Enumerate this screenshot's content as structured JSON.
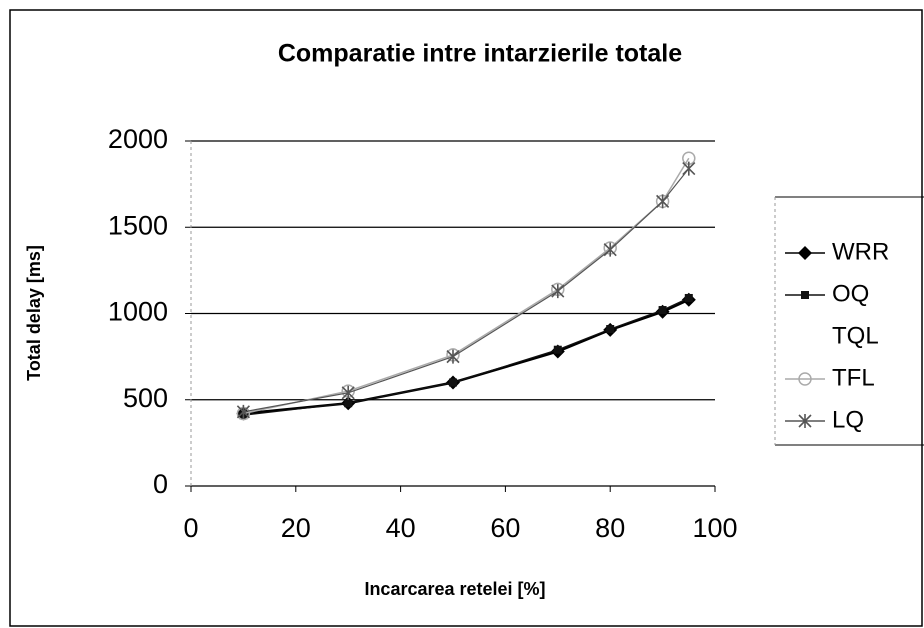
{
  "chart_data": {
    "type": "line",
    "title": "Comparatie intre intarzierile totale",
    "xlabel": "Incarcarea retelei [%]",
    "ylabel": "Total delay [ms]",
    "x": [
      10,
      30,
      50,
      70,
      80,
      90,
      95
    ],
    "series": [
      {
        "name": "WRR",
        "color": "#000000",
        "marker": "diamond",
        "values": [
          420,
          480,
          600,
          780,
          905,
          1010,
          1080
        ]
      },
      {
        "name": "OQ",
        "color": "#111111",
        "marker": "square",
        "values": [
          410,
          480,
          600,
          790,
          910,
          1020,
          1090
        ]
      },
      {
        "name": "TQL",
        "color": "#ffffff",
        "marker": "none",
        "values": [
          null,
          null,
          null,
          null,
          null,
          null,
          null
        ]
      },
      {
        "name": "TFL",
        "color": "#aaaaaa",
        "marker": "circle",
        "values": [
          420,
          550,
          760,
          1140,
          1380,
          1650,
          1900
        ]
      },
      {
        "name": "LQ",
        "color": "#555555",
        "marker": "star",
        "values": [
          430,
          540,
          750,
          1130,
          1370,
          1650,
          1840
        ]
      }
    ],
    "xlim": [
      0,
      100
    ],
    "xticks": [
      0,
      20,
      40,
      60,
      80,
      100
    ],
    "ylim": [
      0,
      2000
    ],
    "yticks": [
      0,
      500,
      1000,
      1500,
      2000
    ],
    "grid": true,
    "legend": "right"
  }
}
